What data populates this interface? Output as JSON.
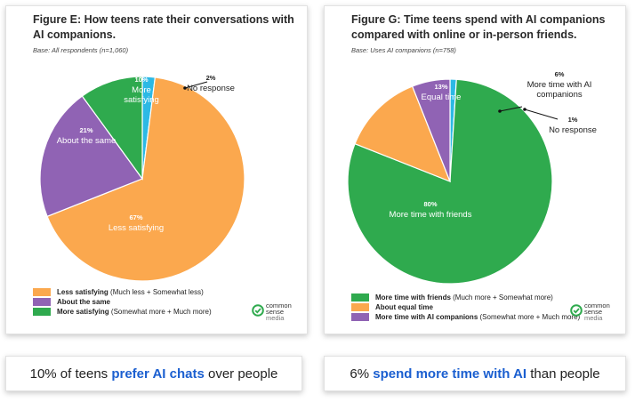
{
  "colors": {
    "orange": "#FBA84E",
    "purple": "#9063B4",
    "green": "#2FAA4E",
    "cyan": "#2CB9E5",
    "highlight": "#1B5FD0",
    "logo": "#2FAA4E"
  },
  "chart_data": [
    {
      "type": "pie",
      "title": "Figure E: How teens rate their conversations with AI companions.",
      "base": "Base: All respondents (n=1,060)",
      "slices": [
        {
          "label": "No response",
          "pct_text": "2%",
          "value": 2,
          "color": "#2CB9E5"
        },
        {
          "label": "Less satisfying",
          "pct_text": "67%",
          "value": 67,
          "color": "#FBA84E"
        },
        {
          "label": "About the same",
          "pct_text": "21%",
          "value": 21,
          "color": "#9063B4"
        },
        {
          "label": "More satisfying",
          "pct_text": "10%",
          "value": 10,
          "color": "#2FAA4E"
        }
      ],
      "legend": [
        {
          "bold": "Less satisfying",
          "rest": " (Much less + Somewhat less)",
          "color": "#FBA84E"
        },
        {
          "bold": "About the same",
          "rest": "",
          "color": "#9063B4"
        },
        {
          "bold": "More satisfying",
          "rest": " (Somewhat more + Much more)",
          "color": "#2FAA4E"
        }
      ]
    },
    {
      "type": "pie",
      "title": "Figure G: Time teens spend with AI companions compared with online or in-person friends.",
      "base": "Base: Uses AI companions (n=758)",
      "slices": [
        {
          "label": "No response",
          "pct_text": "1%",
          "value": 1,
          "color": "#2CB9E5"
        },
        {
          "label": "More time with friends",
          "pct_text": "80%",
          "value": 80,
          "color": "#2FAA4E"
        },
        {
          "label": "Equal time",
          "pct_text": "13%",
          "value": 13,
          "color": "#FBA84E"
        },
        {
          "label": "More time with AI companions",
          "pct_text": "6%",
          "value": 6,
          "color": "#9063B4"
        }
      ],
      "legend": [
        {
          "bold": "More time with friends",
          "rest": " (Much more + Somewhat more)",
          "color": "#2FAA4E"
        },
        {
          "bold": "About equal time",
          "rest": "",
          "color": "#FBA84E"
        },
        {
          "bold": "More time with AI companions",
          "rest": " (Somewhat more + Much more)",
          "color": "#9063B4"
        }
      ]
    }
  ],
  "branding": {
    "line1": "common",
    "line2": "sense",
    "line3": "media"
  },
  "captions": {
    "left": {
      "pre": "10% of teens ",
      "highlight": "prefer AI chats",
      "post": " over people"
    },
    "right": {
      "pre": "6% ",
      "highlight": "spend more time with AI",
      "post": " than people"
    }
  }
}
